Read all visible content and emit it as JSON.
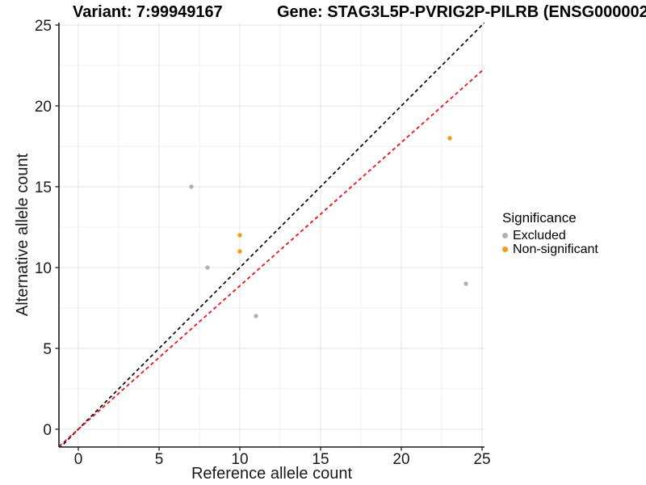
{
  "chart_data": {
    "type": "scatter",
    "title_left": "Variant: 7:99949167",
    "title_right": "Gene: STAG3L5P-PVRIG2P-PILRB (ENSG000002",
    "xlabel": "Reference allele count",
    "ylabel": "Alternative allele count",
    "xlim": [
      -1.2,
      25.15
    ],
    "ylim": [
      -1.1,
      25.15
    ],
    "xticks": [
      0,
      5,
      10,
      15,
      20,
      25
    ],
    "yticks": [
      0,
      5,
      10,
      15,
      20,
      25
    ],
    "minor_ticks": [
      2.5,
      7.5,
      12.5,
      17.5,
      22.5
    ],
    "grid": true,
    "series": [
      {
        "name": "Excluded",
        "color": "#b1b1b1",
        "points": [
          [
            7,
            15
          ],
          [
            8,
            10
          ],
          [
            11,
            7
          ],
          [
            24,
            9
          ]
        ]
      },
      {
        "name": "Non-significant",
        "color": "#f99b0c",
        "points": [
          [
            10,
            12
          ],
          [
            10,
            11
          ],
          [
            23,
            18
          ]
        ]
      }
    ],
    "lines": [
      {
        "name": "identity-line",
        "slope": 1.0,
        "intercept": 0,
        "color": "#000000",
        "dash": "4.5,3.5"
      },
      {
        "name": "fit-line",
        "slope": 0.887,
        "intercept": 0,
        "color": "#ff0000",
        "dash": "4.5,3.5"
      }
    ],
    "legend": {
      "title": "Significance",
      "position": "right",
      "entries": [
        "Excluded",
        "Non-significant"
      ]
    },
    "style": {
      "grid_major": "#e3e3e3",
      "grid_minor": "#f1f1f1",
      "axis_line": "#1a1a1a",
      "point_radius": 2.7
    }
  }
}
